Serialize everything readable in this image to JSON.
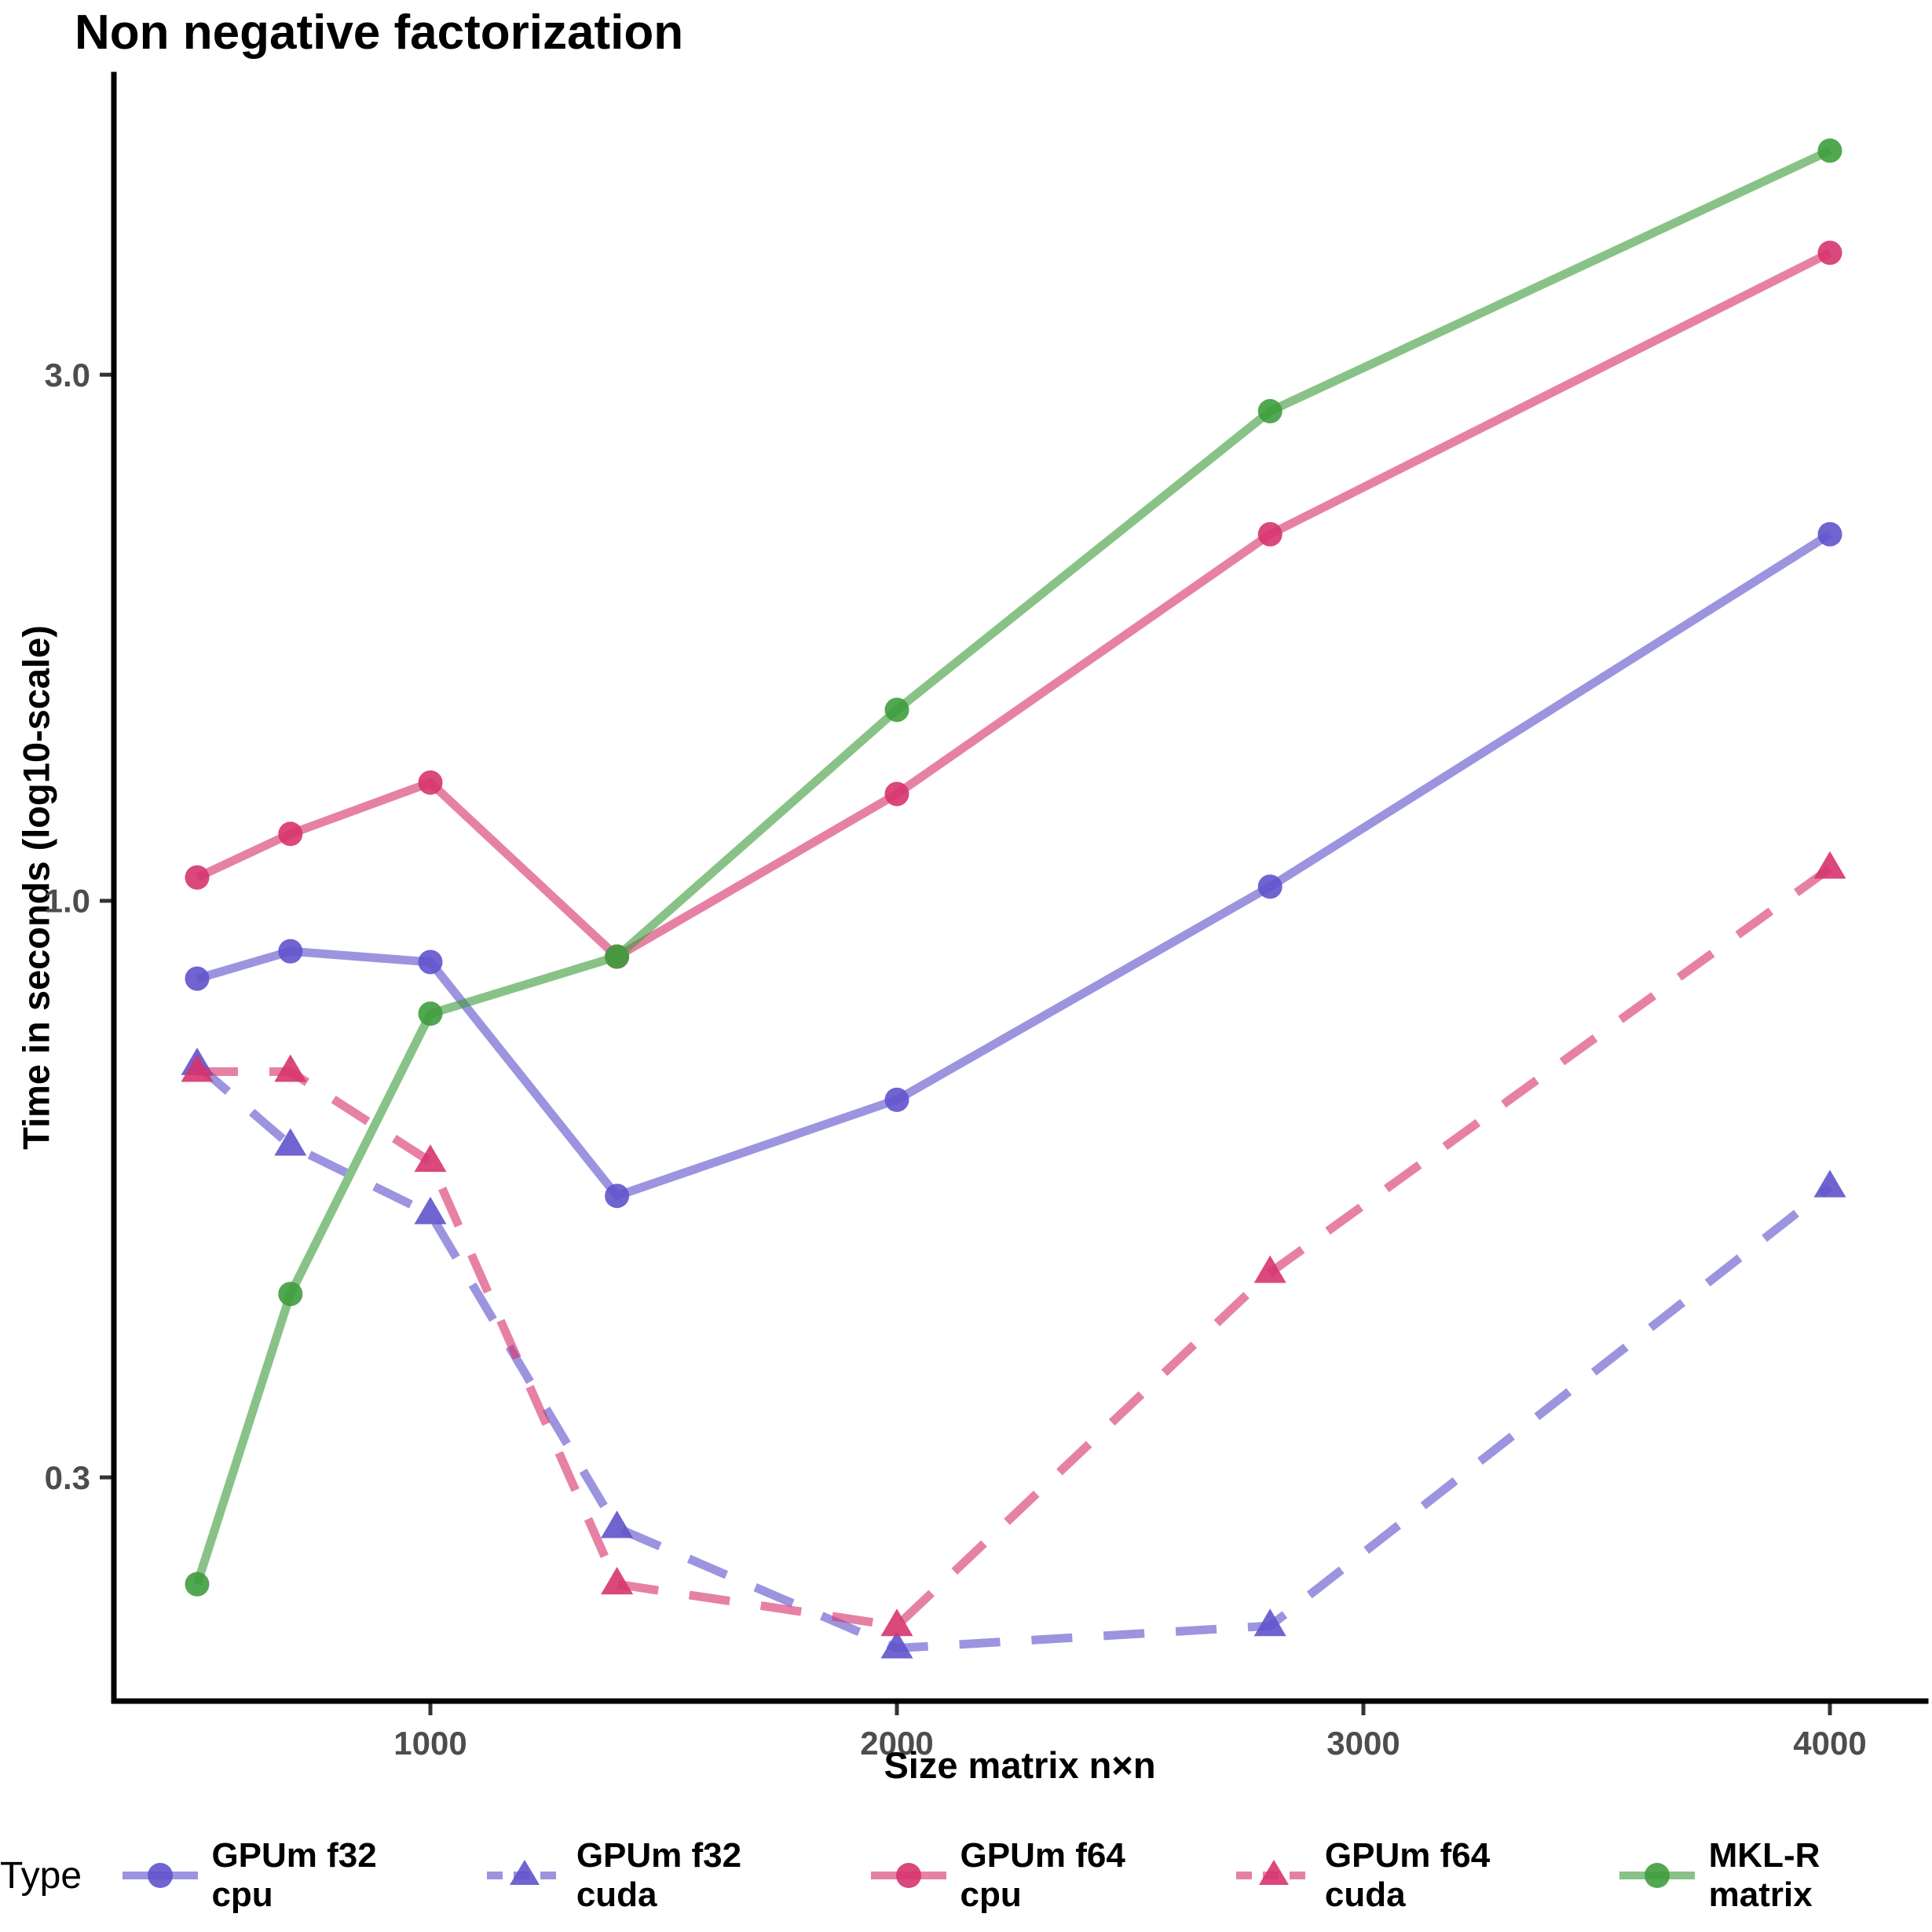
{
  "title": "Non negative factorization",
  "chart_data": {
    "type": "line",
    "title": "Non negative factorization",
    "xlabel": "Size matrix n×n",
    "ylabel": "Time in seconds (log10-scale)",
    "legend_title": "Type",
    "legend_position": "bottom",
    "y_scale": "log10",
    "grid": false,
    "x": [
      500,
      700,
      1000,
      1400,
      2000,
      2800,
      4000
    ],
    "x_ticks": [
      1000,
      2000,
      3000,
      4000
    ],
    "x_tick_labels": [
      "1000",
      "2000",
      "3000",
      "4000"
    ],
    "y_ticks": [
      3.0,
      1.0,
      0.3
    ],
    "y_tick_labels": [
      "3.0",
      "1.0",
      "0.3"
    ],
    "xlim": [
      320,
      4190
    ],
    "ylim": [
      0.19,
      5.6
    ],
    "series": [
      {
        "name": "GPUm f32 cpu",
        "color": "#6053cc",
        "linestyle": "solid",
        "marker": "circle",
        "values": [
          0.85,
          0.9,
          0.88,
          0.54,
          0.66,
          1.03,
          2.15
        ]
      },
      {
        "name": "GPUm f32 cuda",
        "color": "#6053cc",
        "linestyle": "dashed",
        "marker": "triangle",
        "values": [
          0.71,
          0.6,
          0.52,
          0.27,
          0.21,
          0.22,
          0.55
        ]
      },
      {
        "name": "GPUm f64 cpu",
        "color": "#d6346e",
        "linestyle": "solid",
        "marker": "circle",
        "values": [
          1.05,
          1.15,
          1.28,
          0.89,
          1.25,
          2.15,
          3.87
        ]
      },
      {
        "name": "GPUm f64 cuda",
        "color": "#d6346e",
        "linestyle": "dashed",
        "marker": "triangle",
        "values": [
          0.7,
          0.7,
          0.58,
          0.24,
          0.22,
          0.46,
          1.07
        ]
      },
      {
        "name": "MKL-R matrix",
        "color": "#3f9d3e",
        "linestyle": "solid",
        "marker": "circle",
        "values": [
          0.24,
          0.44,
          0.79,
          0.89,
          1.49,
          2.78,
          4.79
        ]
      }
    ],
    "style_colors": {
      "axis_line": "#000000",
      "tick_text": "#4d4d4d",
      "tick_mark": "#333333"
    }
  }
}
